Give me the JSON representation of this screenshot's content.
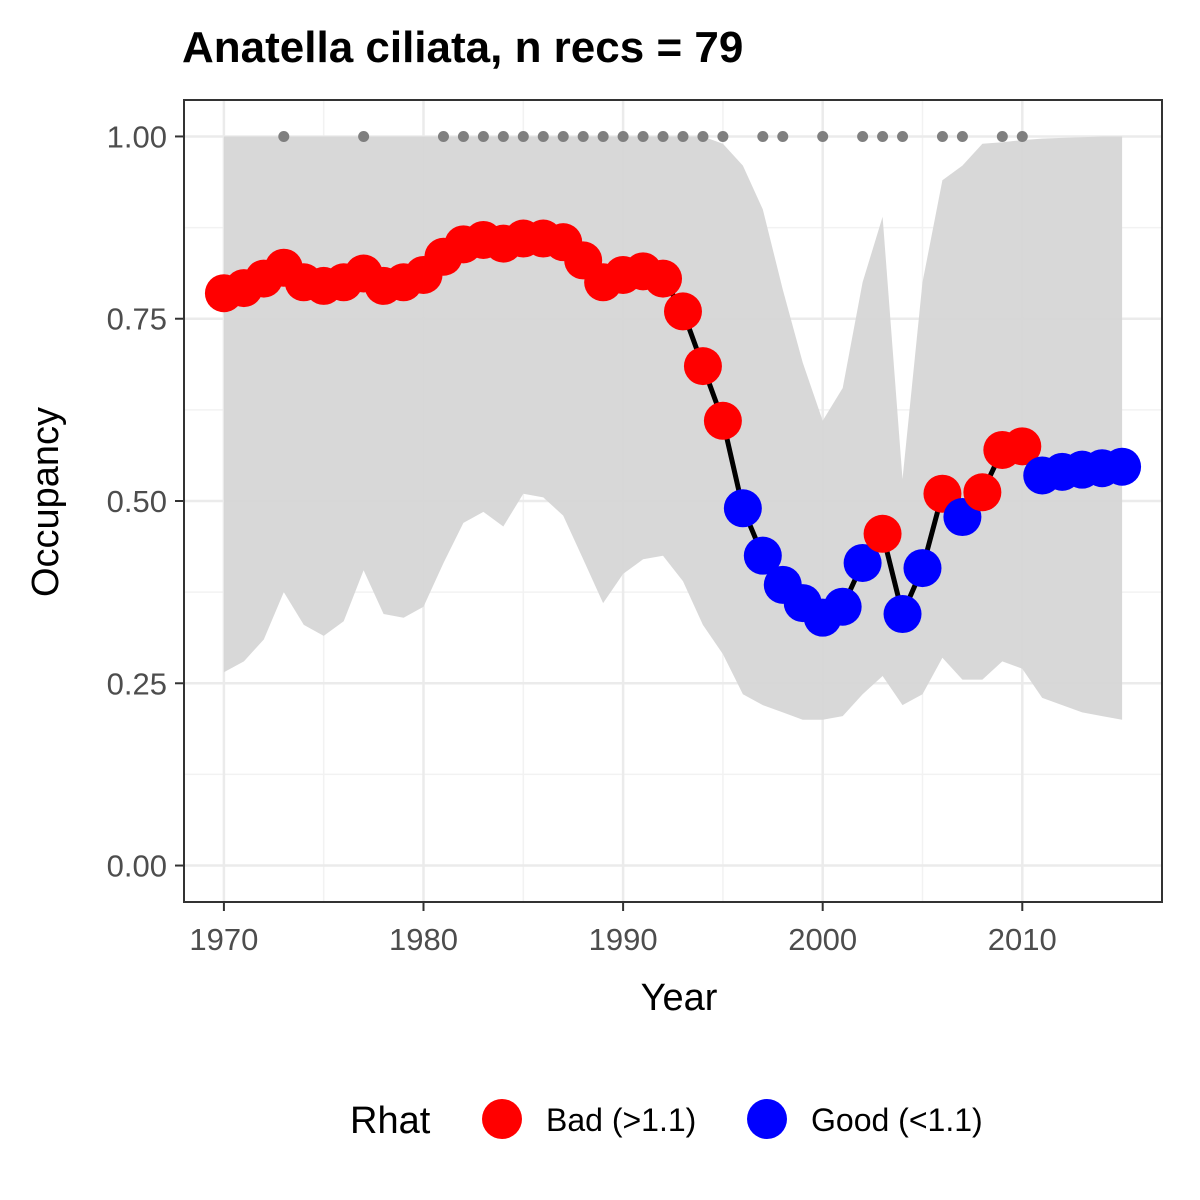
{
  "chart_data": {
    "type": "line",
    "title": "Anatella ciliata, n recs = 79",
    "xlabel": "Year",
    "ylabel": "Occupancy",
    "xlim": [
      1968,
      2017
    ],
    "ylim": [
      -0.05,
      1.05
    ],
    "x_ticks": [
      1970,
      1980,
      1990,
      2000,
      2010
    ],
    "x_tick_labels": [
      "1970",
      "1980",
      "1990",
      "2000",
      "2010"
    ],
    "y_ticks": [
      0,
      0.25,
      0.5,
      0.75,
      1.0
    ],
    "y_tick_labels": [
      "0.00",
      "0.25",
      "0.50",
      "0.75",
      "1.00"
    ],
    "grid": true,
    "legend": {
      "title": "Rhat",
      "position": "bottom",
      "entries": [
        {
          "label": "Bad (>1.1)",
          "color": "#FF0000"
        },
        {
          "label": "Good (<1.1)",
          "color": "#0000FF"
        }
      ]
    },
    "colors": {
      "bad": "#FF0000",
      "good": "#0000FF",
      "ribbon": "#D6D6D6",
      "line": "#000000",
      "record_dots": "#7F7F7F"
    },
    "series": [
      {
        "x": [
          1970,
          1971,
          1972,
          1973,
          1974,
          1975,
          1976,
          1977,
          1978,
          1979,
          1980,
          1981,
          1982,
          1983,
          1984,
          1985,
          1986,
          1987,
          1988,
          1989,
          1990,
          1991,
          1992,
          1993,
          1994,
          1995,
          1996,
          1997,
          1998,
          1999,
          2000,
          2001,
          2002,
          2003,
          2004,
          2005,
          2006,
          2007,
          2008,
          2009,
          2010,
          2011,
          2012,
          2013,
          2014,
          2015
        ],
        "values": [
          0.785,
          0.792,
          0.805,
          0.82,
          0.8,
          0.795,
          0.8,
          0.812,
          0.795,
          0.8,
          0.81,
          0.835,
          0.852,
          0.858,
          0.853,
          0.86,
          0.86,
          0.855,
          0.83,
          0.8,
          0.81,
          0.815,
          0.805,
          0.76,
          0.685,
          0.61,
          0.49,
          0.425,
          0.385,
          0.36,
          0.34,
          0.355,
          0.415,
          0.455,
          0.345,
          0.408,
          0.51,
          0.478,
          0.512,
          0.57,
          0.575,
          0.535,
          0.54,
          0.543,
          0.545,
          0.547
        ],
        "rhat": [
          "Bad",
          "Bad",
          "Bad",
          "Bad",
          "Bad",
          "Bad",
          "Bad",
          "Bad",
          "Bad",
          "Bad",
          "Bad",
          "Bad",
          "Bad",
          "Bad",
          "Bad",
          "Bad",
          "Bad",
          "Bad",
          "Bad",
          "Bad",
          "Bad",
          "Bad",
          "Bad",
          "Bad",
          "Bad",
          "Bad",
          "Good",
          "Good",
          "Good",
          "Good",
          "Good",
          "Good",
          "Good",
          "Bad",
          "Good",
          "Good",
          "Bad",
          "Good",
          "Bad",
          "Bad",
          "Bad",
          "Good",
          "Good",
          "Good",
          "Good",
          "Good"
        ],
        "lower": [
          0.265,
          0.28,
          0.31,
          0.375,
          0.33,
          0.315,
          0.335,
          0.405,
          0.345,
          0.34,
          0.355,
          0.415,
          0.47,
          0.485,
          0.465,
          0.51,
          0.505,
          0.48,
          0.42,
          0.36,
          0.4,
          0.42,
          0.425,
          0.39,
          0.33,
          0.29,
          0.235,
          0.22,
          0.21,
          0.2,
          0.2,
          0.205,
          0.235,
          0.26,
          0.22,
          0.235,
          0.285,
          0.255,
          0.255,
          0.28,
          0.27,
          0.23,
          0.22,
          0.21,
          0.205,
          0.2
        ],
        "upper": [
          1.0,
          1.0,
          1.0,
          1.0,
          1.0,
          1.0,
          1.0,
          1.0,
          1.0,
          1.0,
          1.0,
          1.0,
          1.0,
          1.0,
          1.0,
          1.0,
          1.0,
          1.0,
          1.0,
          1.0,
          1.0,
          1.0,
          1.0,
          1.0,
          1.0,
          0.99,
          0.96,
          0.9,
          0.79,
          0.69,
          0.61,
          0.655,
          0.8,
          0.89,
          0.53,
          0.8,
          0.94,
          0.96,
          0.99,
          0.992,
          0.995,
          0.997,
          0.998,
          0.999,
          1.0,
          1.0
        ]
      }
    ],
    "record_years": [
      1973,
      1977,
      1981,
      1982,
      1983,
      1984,
      1985,
      1986,
      1987,
      1988,
      1989,
      1990,
      1991,
      1992,
      1993,
      1994,
      1995,
      1997,
      1998,
      2000,
      2002,
      2003,
      2004,
      2006,
      2007,
      2009,
      2010
    ]
  }
}
